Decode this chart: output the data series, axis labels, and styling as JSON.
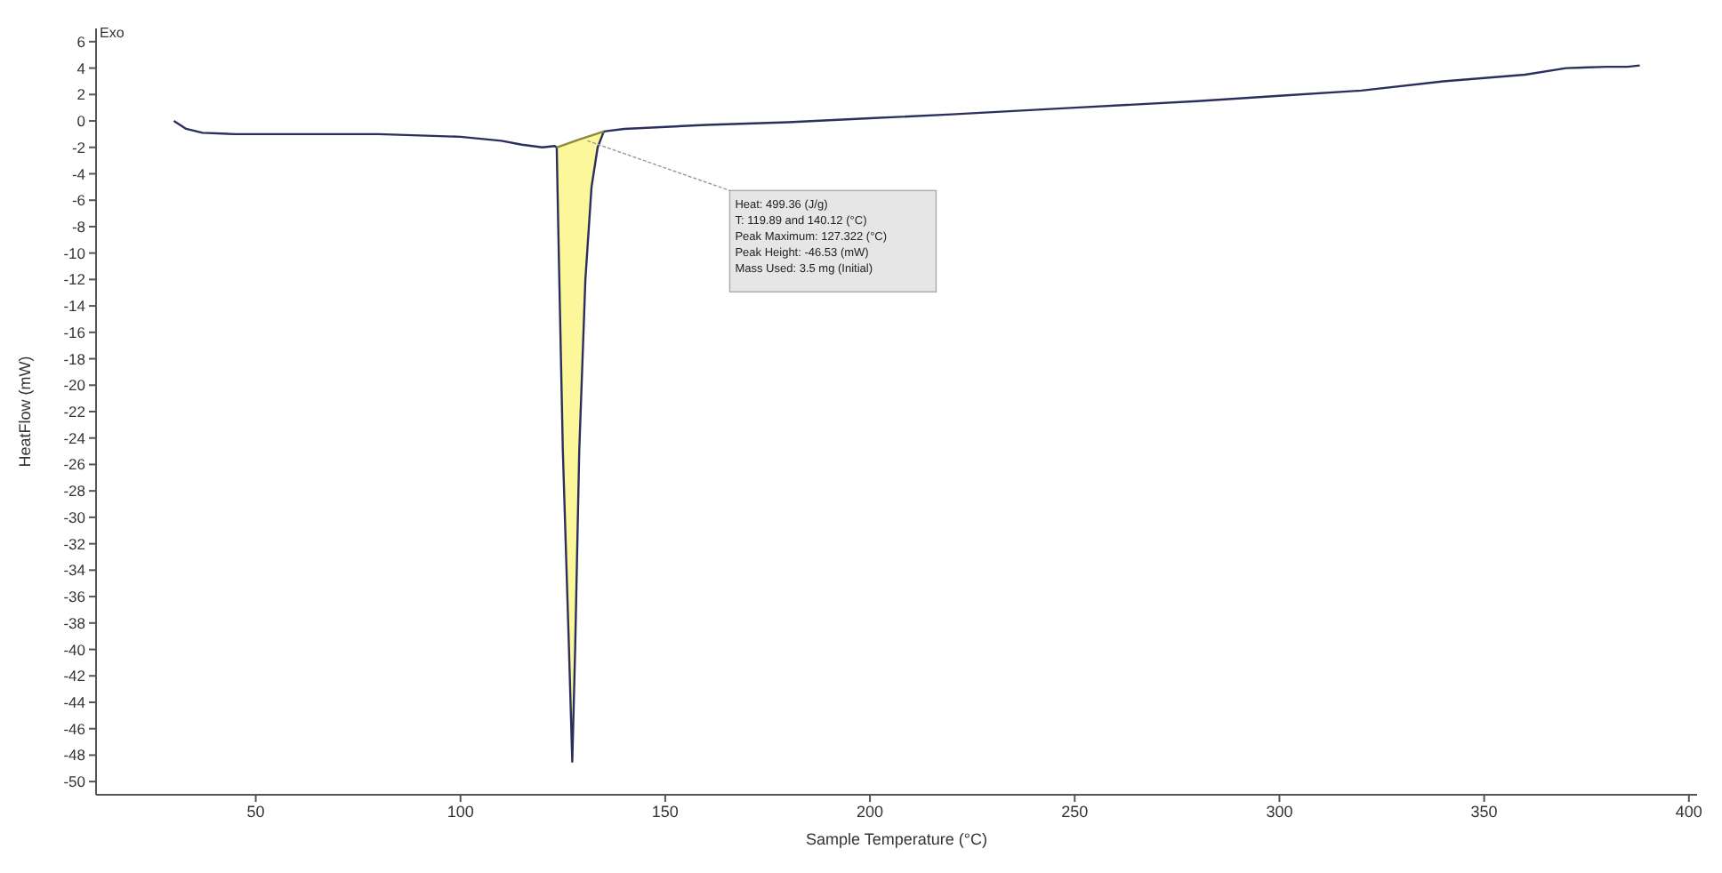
{
  "chart_data": {
    "type": "line",
    "xlabel": "Sample Temperature (°C)",
    "ylabel": "HeatFlow (mW)",
    "xlim": [
      11,
      402
    ],
    "xticks": [
      50,
      100,
      150,
      200,
      250,
      300,
      350,
      400
    ],
    "ylim": [
      -51,
      7
    ],
    "yticks": [
      -50,
      -48,
      -46,
      -44,
      -42,
      -40,
      -38,
      -36,
      -34,
      -32,
      -30,
      -28,
      -26,
      -24,
      -22,
      -20,
      -18,
      -16,
      -14,
      -12,
      -10,
      -8,
      -6,
      -4,
      -2,
      0,
      2,
      4,
      6
    ],
    "grid": false,
    "legend": false,
    "marker": "none",
    "line_style": "solid",
    "series": [
      {
        "type": "line",
        "color": "#2b2f5e",
        "x": [
          30,
          33,
          37,
          45,
          60,
          80,
          100,
          110,
          115,
          120,
          123,
          123.5,
          124,
          125,
          126.5,
          127.3,
          128,
          129,
          130.5,
          132,
          133.5,
          135,
          140,
          160,
          180,
          200,
          220,
          250,
          280,
          300,
          320,
          340,
          360,
          370,
          380,
          385,
          388
        ],
        "values": [
          0,
          -0.6,
          -0.9,
          -1,
          -1,
          -1,
          -1.2,
          -1.5,
          -1.8,
          -2,
          -1.9,
          -2,
          -10,
          -25,
          -40,
          -48.5,
          -40,
          -25,
          -12,
          -5,
          -2,
          -0.8,
          -0.6,
          -0.3,
          -0.1,
          0.2,
          0.5,
          1,
          1.5,
          1.9,
          2.3,
          3,
          3.5,
          4,
          4.1,
          4.1,
          4.2
        ]
      },
      {
        "type": "line",
        "color": "#8a8a3a",
        "x": [
          123.5,
          129,
          135
        ],
        "values": [
          -2,
          -1.4,
          -0.8
        ]
      },
      {
        "type": "area",
        "color": "#fbf79a",
        "x": [
          123.5,
          124,
          125,
          126.5,
          127.3,
          128,
          129,
          130.5,
          132,
          133.5,
          135
        ],
        "values": [
          -2,
          -10,
          -25,
          -40,
          -48.5,
          -40,
          -25,
          -12,
          -5,
          -2,
          -0.8
        ]
      }
    ],
    "annotations": [
      "Exo",
      {
        "text": "Heat:  499.36 (J/g)\nT: 119.89 and 140.12 (°C)\nPeak Maximum:  127.322 (°C)\nPeak Height:  -46.53 (mW)\nMass Used:  3.5 mg (Initial)",
        "x": 131,
        "y": -1.5
      }
    ]
  }
}
